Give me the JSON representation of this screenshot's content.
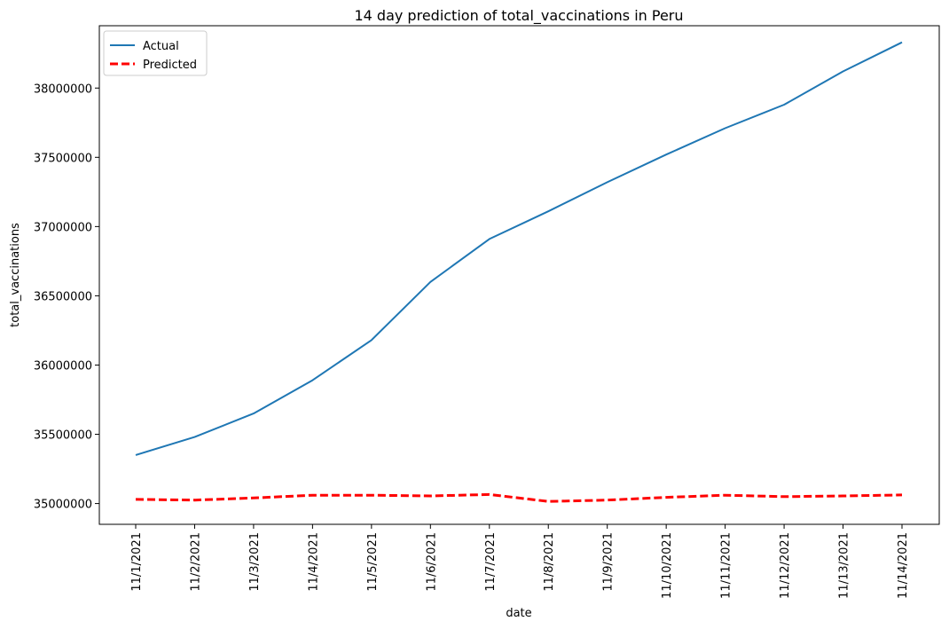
{
  "chart_data": {
    "type": "line",
    "title": "14 day prediction of total_vaccinations in Peru",
    "xlabel": "date",
    "ylabel": "total_vaccinations",
    "categories": [
      "11/1/2021",
      "11/2/2021",
      "11/3/2021",
      "11/4/2021",
      "11/5/2021",
      "11/6/2021",
      "11/7/2021",
      "11/8/2021",
      "11/9/2021",
      "11/10/2021",
      "11/11/2021",
      "11/12/2021",
      "11/13/2021",
      "11/14/2021"
    ],
    "ylim": [
      34850000,
      38450000
    ],
    "yticks": [
      35000000,
      35500000,
      36000000,
      36500000,
      37000000,
      37500000,
      38000000
    ],
    "ytick_labels": [
      "35000000",
      "35500000",
      "36000000",
      "36500000",
      "37000000",
      "37500000",
      "38000000"
    ],
    "grid": false,
    "legend_position": "top-left",
    "series": [
      {
        "name": "Actual",
        "color": "#1f77b4",
        "style": "solid",
        "values": [
          35350000,
          35480000,
          35650000,
          35890000,
          36180000,
          36600000,
          36910000,
          37110000,
          37320000,
          37520000,
          37710000,
          37880000,
          38120000,
          38330000
        ]
      },
      {
        "name": "Predicted",
        "color": "#ff0000",
        "style": "dashed",
        "values": [
          35030000,
          35025000,
          35040000,
          35060000,
          35060000,
          35055000,
          35065000,
          35015000,
          35025000,
          35045000,
          35060000,
          35050000,
          35055000,
          35062000
        ]
      }
    ]
  }
}
